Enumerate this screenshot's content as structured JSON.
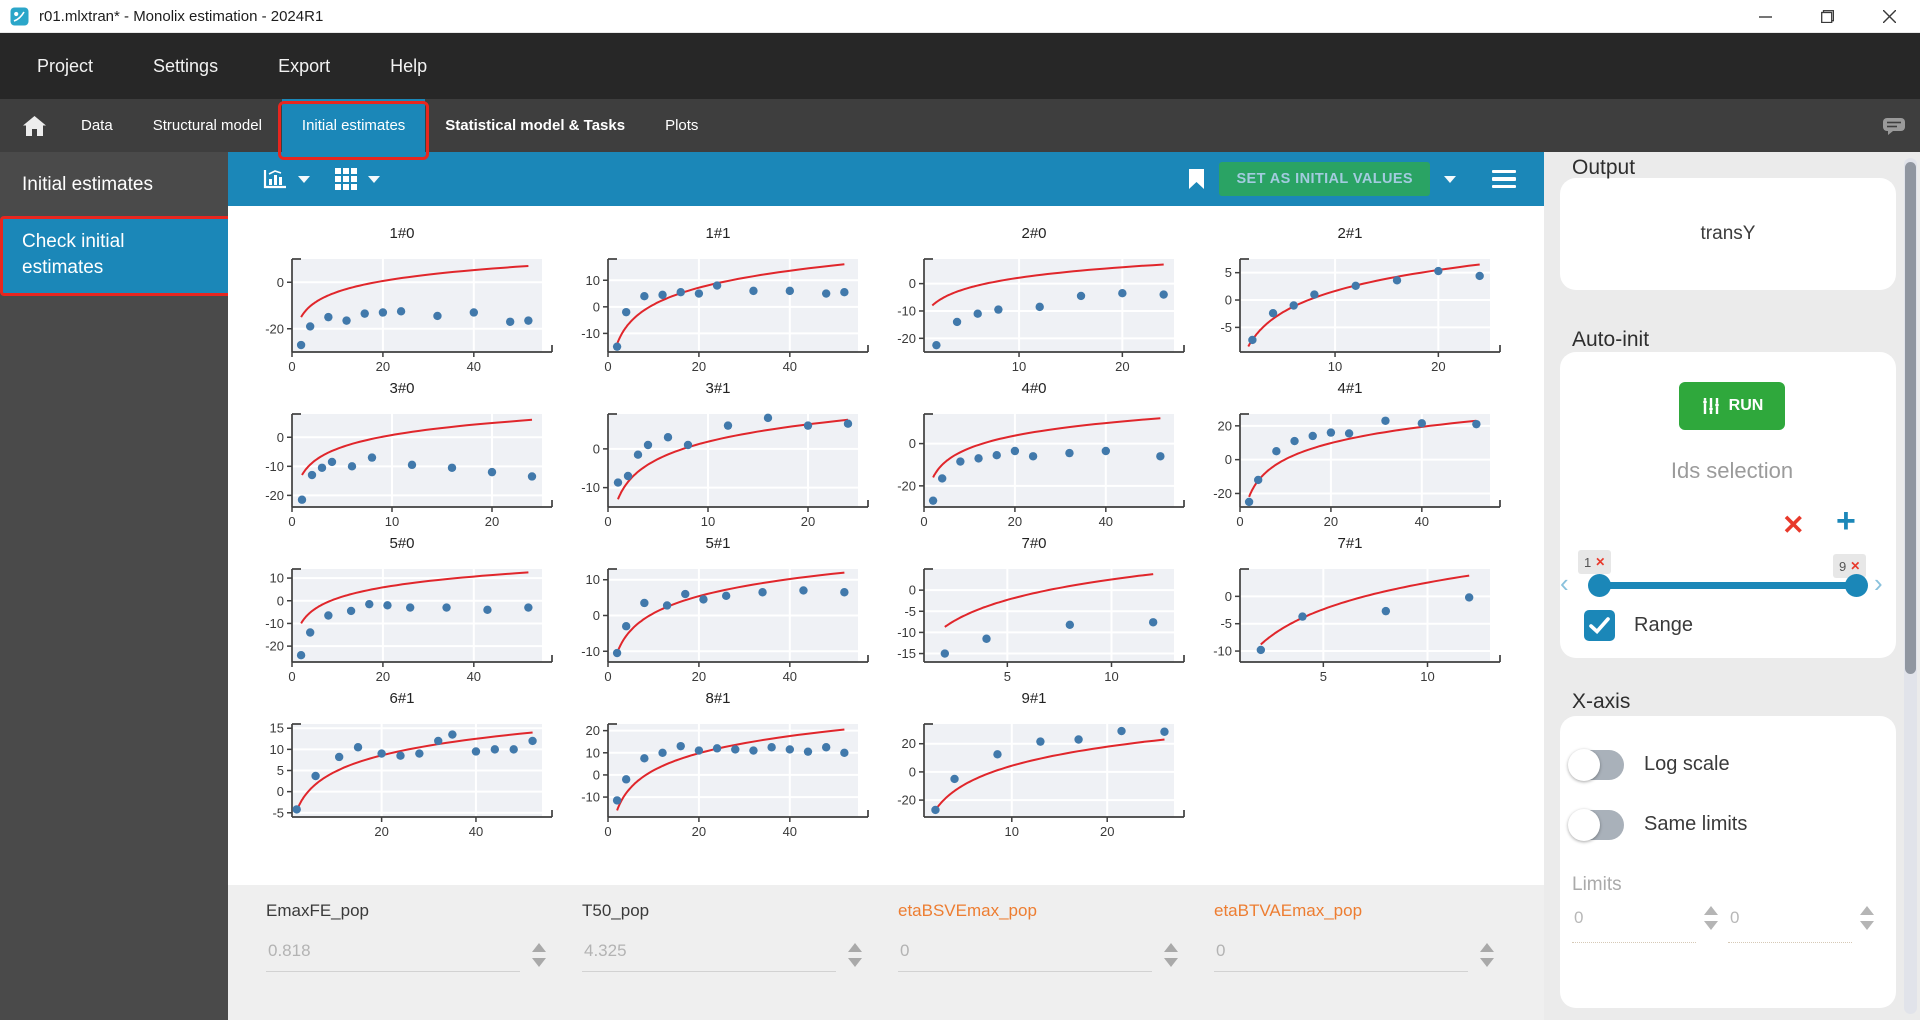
{
  "window": {
    "title": "r01.mlxtran* - Monolix estimation - 2024R1"
  },
  "menubar": {
    "items": [
      "Project",
      "Settings",
      "Export",
      "Help"
    ]
  },
  "tabbar": {
    "items": [
      {
        "label": "Data",
        "active": false,
        "emphasis": false,
        "annotated": false
      },
      {
        "label": "Structural model",
        "active": false,
        "emphasis": false,
        "annotated": false
      },
      {
        "label": "Initial estimates",
        "active": true,
        "emphasis": false,
        "annotated": true
      },
      {
        "label": "Statistical model & Tasks",
        "active": false,
        "emphasis": true,
        "annotated": false
      },
      {
        "label": "Plots",
        "active": false,
        "emphasis": false,
        "annotated": false
      }
    ]
  },
  "sidebar": {
    "header": "Initial estimates",
    "items": [
      {
        "label": "Check initial estimates",
        "active": true,
        "annotated": true
      }
    ]
  },
  "toolbar": {
    "set_initial_values_label": "SET AS INITIAL VALUES"
  },
  "params": {
    "items": [
      {
        "name": "EmaxFE_pop",
        "value": "0.818",
        "highlight": false
      },
      {
        "name": "T50_pop",
        "value": "4.325",
        "highlight": false
      },
      {
        "name": "etaBSVEmax_pop",
        "value": "0",
        "highlight": true
      },
      {
        "name": "etaBTVAEmax_pop",
        "value": "0",
        "highlight": true
      }
    ]
  },
  "right_panel": {
    "output": {
      "label": "Output",
      "value": "transY"
    },
    "auto_init": {
      "label": "Auto-init",
      "run_label": "RUN",
      "ids_selection_label": "Ids selection",
      "slider": {
        "min_label": "1",
        "max_label": "9"
      },
      "range_label": "Range",
      "range_checked": true
    },
    "x_axis": {
      "label": "X-axis",
      "log_scale_label": "Log scale",
      "log_scale_on": false,
      "same_limits_label": "Same limits",
      "same_limits_on": false,
      "limits_label": "Limits",
      "limit_min": "0",
      "limit_max": "0"
    }
  },
  "colors": {
    "accent_blue": "#1b87b8",
    "run_green": "#2fa83c",
    "set_button_green": "#2aa364",
    "annotation_red": "#e8261f",
    "param_highlight_orange": "#ed7d31",
    "curve_red": "#e0262b",
    "dot_blue": "#4179ab",
    "plot_background": "#eff1f5"
  },
  "chart_data": {
    "type": "scatter",
    "description": "Grid of per-individual observed data (blue dots) vs model prediction with initial estimates (red log curve)",
    "legend_position": "none",
    "grid": true,
    "subplots": [
      {
        "title": "1#0",
        "xlim": [
          0,
          55
        ],
        "ylim": [
          -30,
          10
        ],
        "xticks": [
          0,
          20,
          40
        ],
        "yticks": [
          0,
          -20
        ],
        "curve": {
          "x0": 2,
          "y0": -15,
          "x1": 52,
          "y1": 7
        },
        "points": [
          [
            2,
            -27
          ],
          [
            4,
            -19
          ],
          [
            8,
            -15
          ],
          [
            12,
            -16.5
          ],
          [
            16,
            -13.5
          ],
          [
            20,
            -13
          ],
          [
            24,
            -12.5
          ],
          [
            32,
            -14.5
          ],
          [
            40,
            -13
          ],
          [
            48,
            -17
          ],
          [
            52,
            -16.5
          ]
        ]
      },
      {
        "title": "1#1",
        "xlim": [
          0,
          55
        ],
        "ylim": [
          -17,
          18
        ],
        "xticks": [
          0,
          20,
          40
        ],
        "yticks": [
          10,
          0,
          -10
        ],
        "curve": {
          "x0": 2,
          "y0": -14,
          "x1": 52,
          "y1": 16
        },
        "points": [
          [
            2,
            -15
          ],
          [
            4,
            -2
          ],
          [
            8,
            4
          ],
          [
            12,
            4.5
          ],
          [
            16,
            5.5
          ],
          [
            20,
            5
          ],
          [
            24,
            8
          ],
          [
            32,
            6
          ],
          [
            40,
            6
          ],
          [
            48,
            5
          ],
          [
            52,
            5.5
          ]
        ]
      },
      {
        "title": "2#0",
        "xlim": [
          0.8,
          25
        ],
        "ylim": [
          -25,
          9
        ],
        "xticks": [
          10,
          20
        ],
        "yticks": [
          0,
          -10,
          -20
        ],
        "curve": {
          "x0": 1.6,
          "y0": -8,
          "x1": 24,
          "y1": 7
        },
        "points": [
          [
            2,
            -22.5
          ],
          [
            4,
            -14
          ],
          [
            6,
            -11
          ],
          [
            8,
            -9.5
          ],
          [
            12,
            -8.5
          ],
          [
            16,
            -4.5
          ],
          [
            20,
            -3.5
          ],
          [
            24,
            -4
          ]
        ]
      },
      {
        "title": "2#1",
        "xlim": [
          0.8,
          25
        ],
        "ylim": [
          -9.5,
          7.5
        ],
        "xticks": [
          10,
          20
        ],
        "yticks": [
          5,
          0,
          -5
        ],
        "curve": {
          "x0": 1.6,
          "y0": -8.5,
          "x1": 24,
          "y1": 6.5
        },
        "points": [
          [
            2,
            -7.3
          ],
          [
            4,
            -2.4
          ],
          [
            6,
            -1
          ],
          [
            8,
            1
          ],
          [
            12,
            2.6
          ],
          [
            16,
            3.6
          ],
          [
            20,
            5.3
          ],
          [
            24,
            4.4
          ]
        ]
      },
      {
        "title": "3#0",
        "xlim": [
          0,
          25
        ],
        "ylim": [
          -24,
          8
        ],
        "xticks": [
          0,
          10,
          20
        ],
        "yticks": [
          0,
          -10,
          -20
        ],
        "curve": {
          "x0": 1,
          "y0": -13,
          "x1": 24,
          "y1": 6
        },
        "points": [
          [
            1,
            -21.5
          ],
          [
            2,
            -13
          ],
          [
            3,
            -10.5
          ],
          [
            4,
            -8.5
          ],
          [
            6,
            -10
          ],
          [
            8,
            -7
          ],
          [
            12,
            -9.5
          ],
          [
            16,
            -10.5
          ],
          [
            20,
            -12
          ],
          [
            24,
            -13.5
          ]
        ]
      },
      {
        "title": "3#1",
        "xlim": [
          0,
          25
        ],
        "ylim": [
          -15,
          9
        ],
        "xticks": [
          0,
          10,
          20
        ],
        "yticks": [
          0,
          -10
        ],
        "curve": {
          "x0": 1,
          "y0": -13,
          "x1": 24,
          "y1": 7.5
        },
        "points": [
          [
            1,
            -8.7
          ],
          [
            2,
            -7
          ],
          [
            3,
            -1.5
          ],
          [
            4,
            1
          ],
          [
            6,
            3
          ],
          [
            8,
            1
          ],
          [
            12,
            6
          ],
          [
            16,
            8
          ],
          [
            20,
            6
          ],
          [
            24,
            6.5
          ]
        ]
      },
      {
        "title": "4#0",
        "xlim": [
          0,
          55
        ],
        "ylim": [
          -30,
          14
        ],
        "xticks": [
          0,
          20,
          40
        ],
        "yticks": [
          0,
          -20
        ],
        "curve": {
          "x0": 2,
          "y0": -16,
          "x1": 52,
          "y1": 12
        },
        "points": [
          [
            2,
            -27
          ],
          [
            4,
            -16.5
          ],
          [
            8,
            -8.5
          ],
          [
            12,
            -7
          ],
          [
            16,
            -5.5
          ],
          [
            20,
            -3.5
          ],
          [
            24,
            -6
          ],
          [
            32,
            -4.5
          ],
          [
            40,
            -3.5
          ],
          [
            52,
            -6
          ]
        ]
      },
      {
        "title": "4#1",
        "xlim": [
          0,
          55
        ],
        "ylim": [
          -28,
          27
        ],
        "xticks": [
          0,
          20,
          40
        ],
        "yticks": [
          20,
          0,
          -20
        ],
        "curve": {
          "x0": 2,
          "y0": -22,
          "x1": 52,
          "y1": 23
        },
        "points": [
          [
            2,
            -25
          ],
          [
            4,
            -12
          ],
          [
            8,
            5
          ],
          [
            12,
            11
          ],
          [
            16,
            14
          ],
          [
            20,
            16
          ],
          [
            24,
            15.5
          ],
          [
            32,
            23
          ],
          [
            40,
            21.5
          ],
          [
            52,
            21
          ]
        ]
      },
      {
        "title": "5#0",
        "xlim": [
          0,
          55
        ],
        "ylim": [
          -27,
          14
        ],
        "xticks": [
          0,
          20,
          40
        ],
        "yticks": [
          10,
          0,
          -10,
          -20
        ],
        "curve": {
          "x0": 2,
          "y0": -10,
          "x1": 52,
          "y1": 12.5
        },
        "points": [
          [
            2,
            -24
          ],
          [
            4,
            -14
          ],
          [
            8,
            -6.5
          ],
          [
            13,
            -4.5
          ],
          [
            17,
            -1.5
          ],
          [
            21,
            -2
          ],
          [
            26,
            -3
          ],
          [
            34,
            -3
          ],
          [
            43,
            -4
          ],
          [
            52,
            -3
          ]
        ]
      },
      {
        "title": "5#1",
        "xlim": [
          0,
          55
        ],
        "ylim": [
          -13,
          13
        ],
        "xticks": [
          0,
          20,
          40
        ],
        "yticks": [
          10,
          0,
          -10
        ],
        "curve": {
          "x0": 2,
          "y0": -10.5,
          "x1": 52,
          "y1": 12
        },
        "points": [
          [
            2,
            -10.5
          ],
          [
            4,
            -3
          ],
          [
            8,
            3.5
          ],
          [
            13,
            2.8
          ],
          [
            17,
            6
          ],
          [
            21,
            4.5
          ],
          [
            26,
            5.5
          ],
          [
            34,
            6.5
          ],
          [
            43,
            7
          ],
          [
            52,
            6.5
          ]
        ]
      },
      {
        "title": "7#0",
        "xlim": [
          1,
          13
        ],
        "ylim": [
          -17,
          5
        ],
        "xticks": [
          5,
          10
        ],
        "yticks": [
          0,
          -5,
          -10,
          -15
        ],
        "curve": {
          "x0": 2,
          "y0": -8.7,
          "x1": 12,
          "y1": 3.8
        },
        "points": [
          [
            2,
            -15
          ],
          [
            4,
            -11.5
          ],
          [
            8,
            -8.2
          ],
          [
            12,
            -7.6
          ]
        ]
      },
      {
        "title": "7#1",
        "xlim": [
          1,
          13
        ],
        "ylim": [
          -12,
          5
        ],
        "xticks": [
          5,
          10
        ],
        "yticks": [
          0,
          -5,
          -10
        ],
        "curve": {
          "x0": 2,
          "y0": -8.8,
          "x1": 12,
          "y1": 3.8
        },
        "points": [
          [
            2,
            -9.8
          ],
          [
            4,
            -3.7
          ],
          [
            8,
            -2.7
          ],
          [
            12,
            -0.2
          ]
        ]
      },
      {
        "title": "6#1",
        "xlim": [
          1,
          54
        ],
        "ylim": [
          -6,
          16
        ],
        "xticks": [
          20,
          40
        ],
        "yticks": [
          15,
          10,
          5,
          0,
          -5
        ],
        "curve": {
          "x0": 2,
          "y0": -4.5,
          "x1": 52,
          "y1": 14
        },
        "points": [
          [
            2,
            -4.2
          ],
          [
            6,
            3.7
          ],
          [
            11,
            8.2
          ],
          [
            15,
            10.5
          ],
          [
            20,
            9
          ],
          [
            24,
            8.5
          ],
          [
            28,
            9
          ],
          [
            32,
            12
          ],
          [
            35,
            13.5
          ],
          [
            40,
            9.5
          ],
          [
            44,
            10
          ],
          [
            48,
            10
          ],
          [
            52,
            12
          ]
        ]
      },
      {
        "title": "8#1",
        "xlim": [
          0,
          55
        ],
        "ylim": [
          -19,
          23
        ],
        "xticks": [
          0,
          20,
          40
        ],
        "yticks": [
          20,
          10,
          0,
          -10
        ],
        "curve": {
          "x0": 2,
          "y0": -16,
          "x1": 52,
          "y1": 20.5
        },
        "points": [
          [
            2,
            -11.5
          ],
          [
            4,
            -2
          ],
          [
            8,
            7.5
          ],
          [
            12,
            10
          ],
          [
            16,
            13
          ],
          [
            20,
            11
          ],
          [
            24,
            12
          ],
          [
            28,
            11.5
          ],
          [
            32,
            11
          ],
          [
            36,
            12.5
          ],
          [
            40,
            11.5
          ],
          [
            44,
            10.5
          ],
          [
            48,
            12.5
          ],
          [
            52,
            10
          ]
        ]
      },
      {
        "title": "9#1",
        "xlim": [
          0.8,
          27
        ],
        "ylim": [
          -32,
          34
        ],
        "xticks": [
          10,
          20
        ],
        "yticks": [
          20,
          0,
          -20
        ],
        "curve": {
          "x0": 2,
          "y0": -27,
          "x1": 26,
          "y1": 23
        },
        "points": [
          [
            2,
            -27
          ],
          [
            4,
            -5
          ],
          [
            8.5,
            12.5
          ],
          [
            13,
            21.5
          ],
          [
            17,
            23
          ],
          [
            21.5,
            29
          ],
          [
            26,
            28.5
          ]
        ]
      }
    ]
  }
}
